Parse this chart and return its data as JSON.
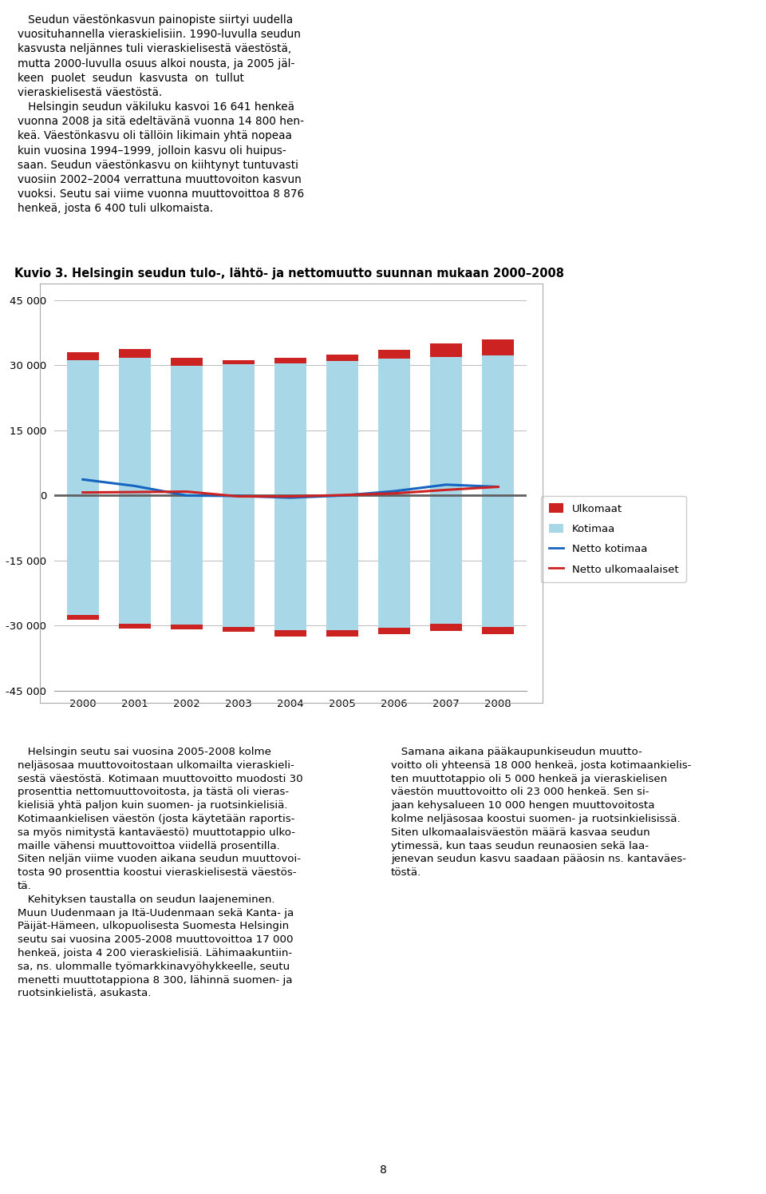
{
  "title": "Kuvio 3. Helsingin seudun tulo-, lähtö- ja nettomuutto suunnan mukaan 2000–2008",
  "years": [
    2000,
    2001,
    2002,
    2003,
    2004,
    2005,
    2006,
    2007,
    2008
  ],
  "kotimaa_pos": [
    31200,
    31700,
    29800,
    30200,
    30500,
    31000,
    31500,
    32000,
    32200
  ],
  "ulkomaat_pos": [
    1800,
    2000,
    2000,
    900,
    1200,
    1500,
    2000,
    3000,
    3800
  ],
  "kotimaa_neg": [
    -27500,
    -29500,
    -29800,
    -30200,
    -31000,
    -31000,
    -30500,
    -29500,
    -30200
  ],
  "ulkomaat_neg": [
    -1100,
    -1200,
    -1100,
    -1100,
    -1400,
    -1400,
    -1500,
    -1700,
    -1800
  ],
  "netto_kotimaa": [
    3700,
    2200,
    0,
    -100,
    -500,
    0,
    1000,
    2500,
    2000
  ],
  "netto_ulkomaat": [
    700,
    800,
    900,
    -200,
    -200,
    100,
    500,
    1300,
    2000
  ],
  "color_kotimaa": "#A8D8E8",
  "color_ulkomaat": "#CC2222",
  "color_netto_kotimaa": "#1565C0",
  "color_netto_ulkomaat": "#CC2222",
  "color_zero_line": "#606060",
  "ylim": [
    -45000,
    47000
  ],
  "yticks": [
    -45000,
    -30000,
    -15000,
    0,
    15000,
    30000,
    45000
  ],
  "background_color": "#ffffff",
  "chart_bg": "#ffffff",
  "legend_labels": [
    "Ulkomaat",
    "Kotimaa",
    "Netto kotimaa",
    "Netto ulkomaalaiset"
  ],
  "top_text_col1": "   Seudun väestönkasvun painopiste siirtyi uudella\nvuosituhannella vieraskielisiin. 1990-luvulla seudun\nkasvusta neljännes tuli vieraskielisestä väestöstä,\nmutta 2000-luvulla osuus alkoi nousta, ja 2005 jäl-\nkeen  puolet  seudun  kasvusta  on  tullut\nvieraskielisestä väestöstä.\n   Helsingin seudun väkiluku kasvoi 16 641 henkeä\nvuonna 2008 ja sitä edeltävänä vuonna 14 800 hen-\nkeä. Väestönkasvu oli tällöin likimain yhtä nopeaa\nkuin vuosina 1994–1999, jolloin kasvu oli huipus-\nsaan. Seudun väestönkasvu on kiihtynyt tuntuvasti\nvuosiin 2002–2004 verrattuna muuttovoiton kasvun\nvuoksi. Seutu sai viime vuonna muuttovoittoa 8 876\nhenkeä, josta 6 400 tuli ulkomaista.",
  "bottom_left": "   Helsingin seutu sai vuosina 2005-2008 kolme\nneljäsosaa muuttovoitostaan ulkomailta vieraskieli-\nsestä väestöstä. Kotimaan muuttovoitto muodosti 30\nprosenttia nettomuuttovoitosta, ja tästä oli vieras-\nkielisiä yhtä paljon kuin suomen- ja ruotsinkielisiä.\nKotimaankielisen väestön (josta käytetään raportis-\nsa myös nimitystä kantaväestö) muuttotappio ulko-\nmaille vähensi muuttovoittoa viidellä prosentilla.\nSiten neljän viime vuoden aikana seudun muuttovoi-\ntosta 90 prosenttia koostui vieraskielisestä väestös-\ntä.\n   Kehityksen taustalla on seudun laajeneminen.\nMuun Uudenmaan ja Itä-Uudenmaan sekä Kanta- ja\nPäijät-Hämeen, ulkopuolisesta Suomesta Helsingin\nseutu sai vuosina 2005-2008 muuttovoittoa 17 000\nhenkeä, joista 4 200 vieraskielisiä. Lähimaakuntiin-\nsa, ns. ulommalle työmarkkinavyöhykkeelle, seutu\nmenetti muuttotappiona 8 300, lähinnä suomen- ja\nruotsinkielistä, asukasta.",
  "bottom_right": "   Samana aikana pääkaupunkiseudun muutto-\nvoitto oli yhteensä 18 000 henkeä, josta kotimaankielis-\nten muuttotappio oli 5 000 henkeä ja vieraskielisen\nväestön muuttovoitto oli 23 000 henkeä. Sen si-\njaan kehysalueen 10 000 hengen muuttovoitosta\nkolme neljäsosaa koostui suomen- ja ruotsinkielisissä.\nSiten ulkomaalaisväestön määrä kasvaa seudun\nytimessä, kun taas seudun reunaosien sekä laa-\njenevan seudun kasvu saadaan pääosin ns. kantaväes-\ntöstä.",
  "teal_color": "#4AABAB",
  "page_number": "8"
}
